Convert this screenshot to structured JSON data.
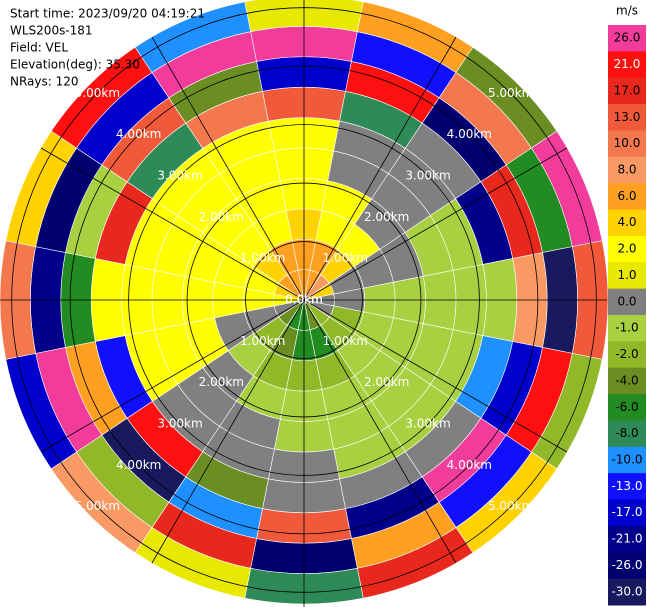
{
  "chart_data": {
    "type": "ppi",
    "header": [
      "Start time: 2023/09/20 04:19:21",
      "WLS200s-181",
      "Field: VEL",
      "Elevation(deg): 35.30",
      "NRays: 120"
    ],
    "rlim": [
      0,
      5.2
    ],
    "rticks": [
      {
        "value": 0,
        "label": "0.0km"
      },
      {
        "value": 1,
        "label": "1.00km"
      },
      {
        "value": 2,
        "label": "2.00km"
      },
      {
        "value": 3,
        "label": "3.00km"
      },
      {
        "value": 4,
        "label": "4.00km"
      },
      {
        "value": 5,
        "label": "5.00km"
      }
    ],
    "field": [
      [
        6,
        6,
        4,
        2,
        2,
        2,
        13,
        -17,
        26,
        1
      ],
      [
        6,
        6,
        2,
        2,
        0,
        0,
        -8,
        21,
        -13,
        6
      ],
      [
        8,
        4,
        2,
        0,
        0,
        0,
        0,
        -26,
        10,
        -4
      ],
      [
        4,
        0,
        0,
        0,
        -1,
        -1,
        -21,
        17,
        -6,
        26
      ],
      [
        0,
        0,
        -1,
        -1,
        -1,
        -1,
        -1,
        8,
        -30,
        13
      ],
      [
        0,
        -2,
        -1,
        -1,
        -1,
        -1,
        -10,
        -17,
        21,
        -2
      ],
      [
        -2,
        -2,
        -1,
        -1,
        -1,
        -1,
        0,
        26,
        -13,
        4
      ],
      [
        -4,
        -6,
        -2,
        -1,
        -1,
        -1,
        0,
        -21,
        6,
        17
      ],
      [
        -6,
        -6,
        -2,
        -1,
        -1,
        0,
        0,
        13,
        -26,
        -8
      ],
      [
        -6,
        -4,
        -2,
        -1,
        0,
        0,
        -4,
        -10,
        17,
        1
      ],
      [
        -4,
        -2,
        -1,
        0,
        0,
        0,
        21,
        -30,
        -2,
        8
      ],
      [
        0,
        0,
        0,
        2,
        2,
        2,
        -13,
        6,
        26,
        -17
      ],
      [
        2,
        2,
        2,
        2,
        2,
        2,
        2,
        -6,
        -21,
        10
      ],
      [
        4,
        2,
        2,
        2,
        2,
        2,
        17,
        -1,
        -26,
        4
      ],
      [
        6,
        4,
        2,
        2,
        2,
        2,
        -8,
        13,
        -17,
        21
      ],
      [
        6,
        6,
        2,
        2,
        2,
        2,
        10,
        -4,
        26,
        -10
      ]
    ],
    "colorbar": {
      "label": "m/s",
      "ticks": [
        {
          "value": 26,
          "label": "26.0"
        },
        {
          "value": 21,
          "label": "21.0"
        },
        {
          "value": 17,
          "label": "17.0"
        },
        {
          "value": 13,
          "label": "13.0"
        },
        {
          "value": 10,
          "label": "10.0"
        },
        {
          "value": 8,
          "label": "8.0"
        },
        {
          "value": 6,
          "label": "6.0"
        },
        {
          "value": 4,
          "label": "4.0"
        },
        {
          "value": 2,
          "label": "2.0"
        },
        {
          "value": 1,
          "label": "1.0"
        },
        {
          "value": 0,
          "label": "0.0"
        },
        {
          "value": -1,
          "label": "-1.0"
        },
        {
          "value": -2,
          "label": "-2.0"
        },
        {
          "value": -4,
          "label": "-4.0"
        },
        {
          "value": -6,
          "label": "-6.0"
        },
        {
          "value": -8,
          "label": "-8.0"
        },
        {
          "value": -10,
          "label": "-10.0"
        },
        {
          "value": -13,
          "label": "-13.0"
        },
        {
          "value": -17,
          "label": "-17.0"
        },
        {
          "value": -21,
          "label": "-21.0"
        },
        {
          "value": -26,
          "label": "-26.0"
        },
        {
          "value": -30,
          "label": "-30.0"
        }
      ],
      "colors": [
        "#f23c9c",
        "#ff1010",
        "#e8281c",
        "#f05a3a",
        "#f4784e",
        "#f99a64",
        "#ffa020",
        "#ffd200",
        "#ffff00",
        "#e8e800",
        "#808080",
        "#a8d040",
        "#90b828",
        "#6b8e23",
        "#228b22",
        "#2e8b57",
        "#1e90ff",
        "#1010ff",
        "#0000cd",
        "#00008b",
        "#000070",
        "#191960"
      ]
    }
  }
}
